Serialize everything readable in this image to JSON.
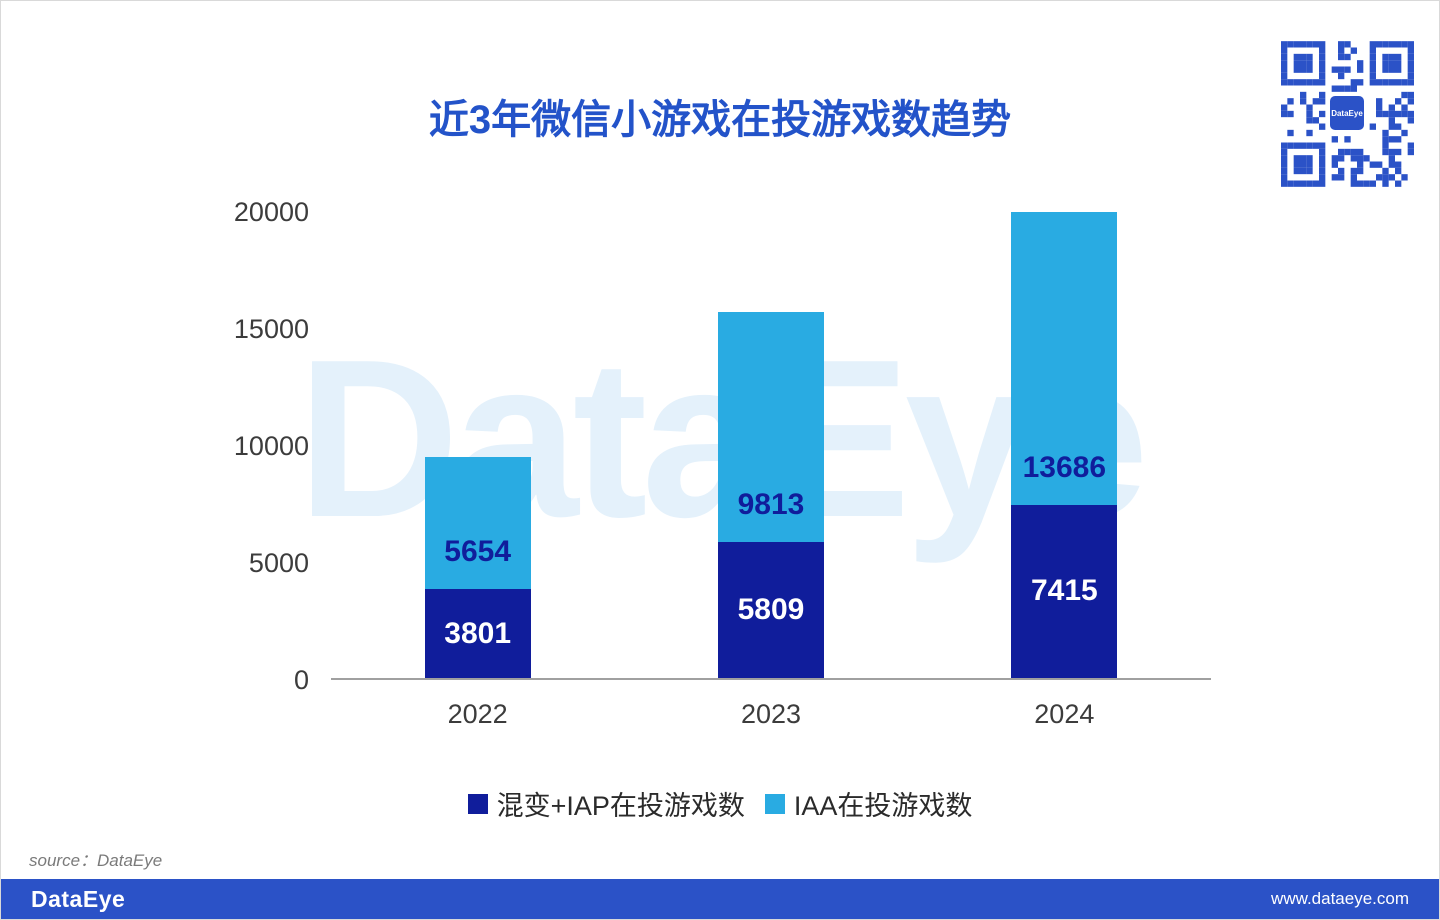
{
  "title": "近3年微信小游戏在投游戏数趋势",
  "watermark": "DataEye",
  "qr": {
    "logo_text": "DataEye"
  },
  "chart_data": {
    "type": "bar",
    "stacked": true,
    "title": "近3年微信小游戏在投游戏数趋势",
    "categories": [
      "2022",
      "2023",
      "2024"
    ],
    "series": [
      {
        "name": "混变+IAP在投游戏数",
        "color": "#101d9b",
        "label_color": "#ffffff",
        "values": [
          3801,
          5809,
          7415
        ]
      },
      {
        "name": "IAA在投游戏数",
        "color": "#29abe2",
        "label_color": "#101d9b",
        "values": [
          5654,
          9813,
          13686
        ]
      }
    ],
    "totals": [
      9455,
      15622,
      21101
    ],
    "yticks": [
      0,
      5000,
      10000,
      15000,
      20000
    ],
    "ylim": [
      0,
      20000
    ],
    "grid": false,
    "legend_position": "bottom",
    "xlabel": "",
    "ylabel": ""
  },
  "source": "source：DataEye",
  "footer": {
    "brand": "DataEye",
    "website": "www.dataeye.com"
  },
  "colors": {
    "title": "#2353c9",
    "dark_series": "#101d9b",
    "light_series": "#29abe2",
    "footer_bg": "#2b52c7",
    "qr": "#2b52c7",
    "watermark": "#e4f1fb"
  }
}
